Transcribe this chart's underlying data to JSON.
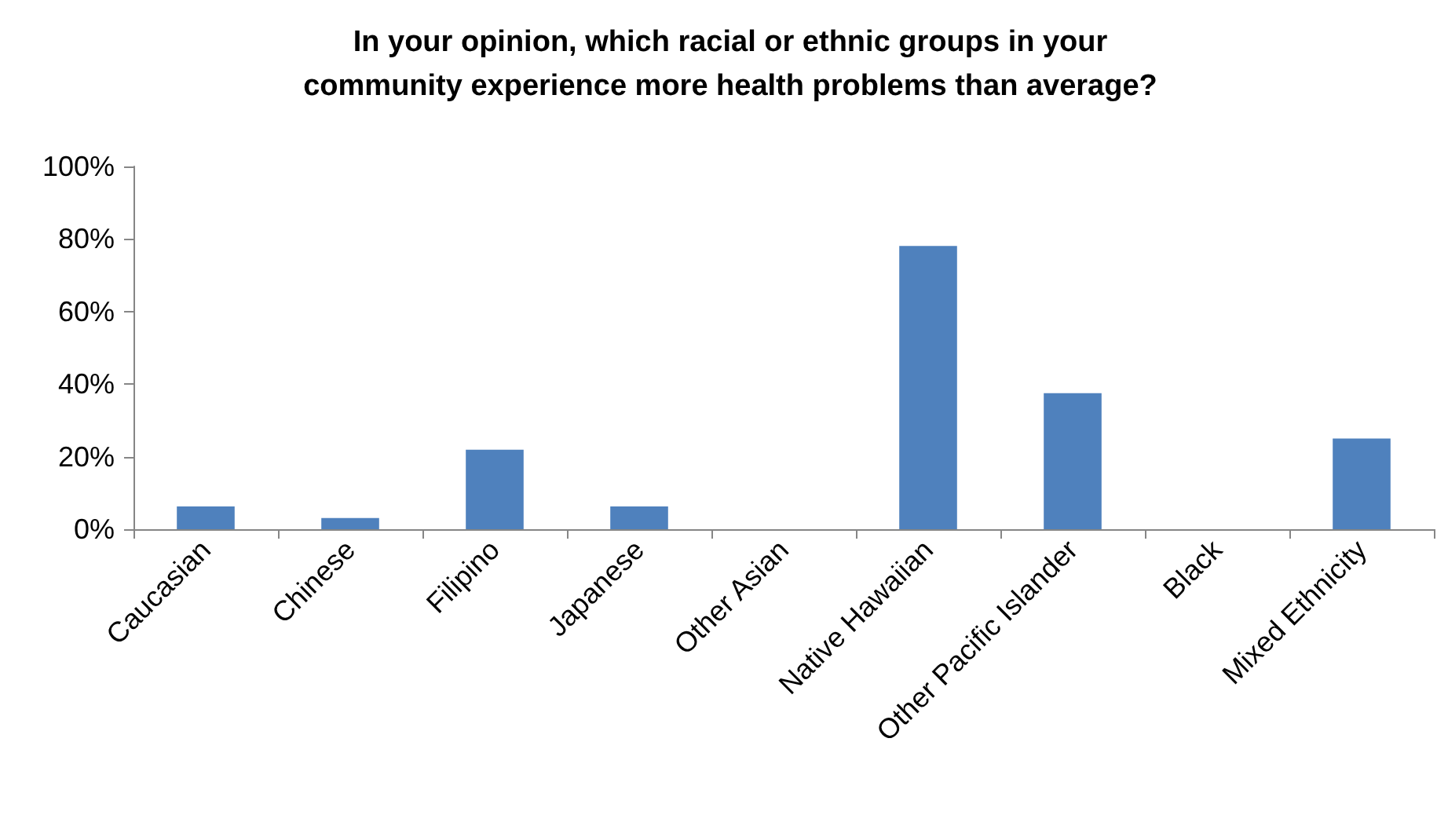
{
  "chart_data": {
    "type": "bar",
    "title": "In your opinion, which racial or ethnic groups in your\ncommunity experience more health problems than average?",
    "categories": [
      "Caucasian",
      "Chinese",
      "Filipino",
      "Japanese",
      "Other Asian",
      "Native Hawaiian",
      "Other Pacific Islander",
      "Black",
      "Mixed Ethnicity"
    ],
    "values": [
      6.3,
      3.1,
      21.9,
      6.3,
      0,
      78.1,
      37.5,
      0,
      25
    ],
    "color": "#4f81bd",
    "ylim": [
      0,
      100
    ],
    "yticks": [
      {
        "value": 0,
        "label": "0%"
      },
      {
        "value": 20,
        "label": "20%"
      },
      {
        "value": 40,
        "label": "40%"
      },
      {
        "value": 60,
        "label": "60%"
      },
      {
        "value": 80,
        "label": "80%"
      },
      {
        "value": 100,
        "label": "100%"
      }
    ],
    "grid": false
  }
}
